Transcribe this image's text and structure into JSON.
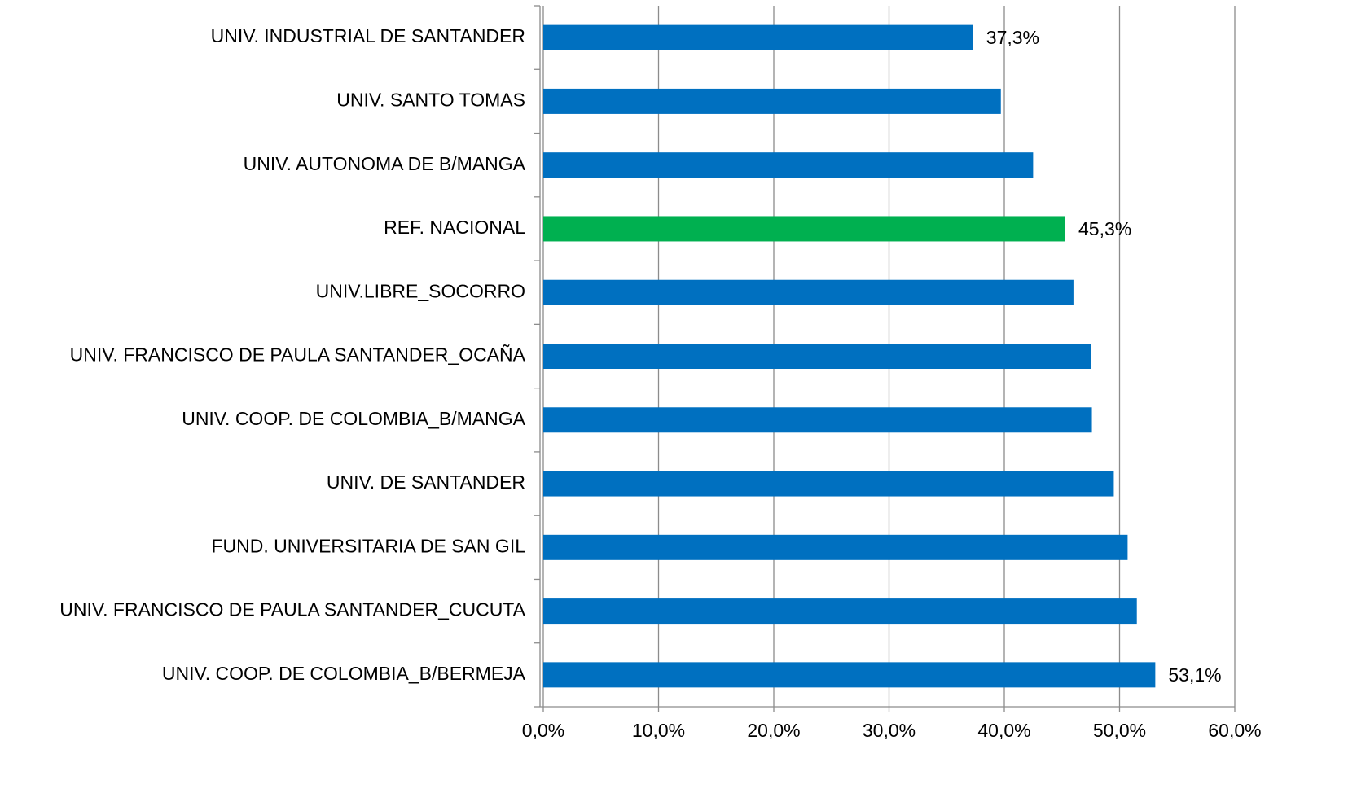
{
  "chart_data": {
    "type": "hbar",
    "categories": [
      "UNIV. INDUSTRIAL DE SANTANDER",
      "UNIV. SANTO TOMAS",
      "UNIV. AUTONOMA DE B/MANGA",
      "REF. NACIONAL",
      "UNIV.LIBRE_SOCORRO",
      "UNIV. FRANCISCO DE PAULA SANTANDER_OCAÑA",
      "UNIV. COOP. DE COLOMBIA_B/MANGA",
      "UNIV. DE SANTANDER",
      "FUND. UNIVERSITARIA DE SAN GIL",
      "UNIV. FRANCISCO DE PAULA SANTANDER_CUCUTA",
      "UNIV. COOP. DE COLOMBIA_B/BERMEJA"
    ],
    "values": [
      37.3,
      39.7,
      42.5,
      45.3,
      46.0,
      47.5,
      47.6,
      49.5,
      50.7,
      51.5,
      53.1
    ],
    "value_labels": [
      "37,3%",
      null,
      null,
      "45,3%",
      null,
      null,
      null,
      null,
      null,
      null,
      "53,1%"
    ],
    "colors": [
      "#0070c0",
      "#0070c0",
      "#0070c0",
      "#00b050",
      "#0070c0",
      "#0070c0",
      "#0070c0",
      "#0070c0",
      "#0070c0",
      "#0070c0",
      "#0070c0"
    ],
    "xlim": [
      0,
      60
    ],
    "xticks": [
      {
        "value": 0,
        "label": "0,0%"
      },
      {
        "value": 10,
        "label": "10,0%"
      },
      {
        "value": 20,
        "label": "20,0%"
      },
      {
        "value": 30,
        "label": "30,0%"
      },
      {
        "value": 40,
        "label": "40,0%"
      },
      {
        "value": 50,
        "label": "50,0%"
      },
      {
        "value": 60,
        "label": "60,0%"
      }
    ],
    "grid": true
  }
}
